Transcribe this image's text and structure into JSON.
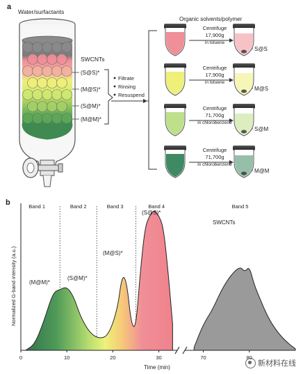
{
  "panel_a": {
    "label": "a",
    "column_label": "Water/surfactants",
    "swcnt_label": "SWCNTs",
    "fractions": [
      "(S@S)*",
      "(M@S)*",
      "(S@M)*",
      "(M@M)*"
    ],
    "steps": [
      "Filtrate",
      "Rinsing",
      "Resuspend"
    ],
    "organic_label": "Organic solvents/polymer",
    "rows": [
      {
        "step": "Centrifuge",
        "speed": "17,900g",
        "solvent": "in toluene",
        "product": "S@S",
        "color": "#f08f98"
      },
      {
        "step": "Centrifuge",
        "speed": "17,900g",
        "solvent": "in toluene",
        "product": "M@S",
        "color": "#eef07a"
      },
      {
        "step": "Centrifuge",
        "speed": "71,700g",
        "solvent": "in chlorobenzene",
        "product": "S@M",
        "color": "#bfe08a"
      },
      {
        "step": "Centrifuge",
        "speed": "71,700g",
        "solvent": "in chlorobenzene",
        "product": "M@M",
        "color": "#3f8a64"
      }
    ]
  },
  "panel_b": {
    "label": "b",
    "ylabel": "Normalized G-band intensity (a.u.)",
    "xlabel": "Time (min)",
    "bands": [
      "Band 1",
      "Band 2",
      "Band 3",
      "Band 4",
      "Band 5"
    ],
    "peak_labels": [
      {
        "text": "(M@M)*",
        "color": "#4b8b7a"
      },
      {
        "text": "(S@M)*",
        "color": "#8dc04a"
      },
      {
        "text": "(M@S)*",
        "color": "#b8a94a"
      },
      {
        "text": "(S@S)*",
        "color": "#e3707a"
      }
    ],
    "swcnt_label": "SWCNTs",
    "ticks": [
      "0",
      "10",
      "20",
      "30",
      "70",
      "80"
    ]
  },
  "chart_data": {
    "type": "area",
    "xlabel": "Time (min)",
    "ylabel": "Normalized G-band intensity (a.u.)",
    "xlim": [
      0,
      90
    ],
    "x_break": [
      34,
      66
    ],
    "x": [
      1,
      3,
      5,
      7,
      8.5,
      10,
      11.5,
      13,
      15,
      17,
      19,
      21,
      22,
      23,
      24,
      25,
      26,
      27,
      28,
      29,
      30,
      31,
      32,
      33,
      68,
      70,
      72,
      74,
      76,
      78,
      79,
      80,
      81,
      82,
      84,
      86,
      88,
      90
    ],
    "y": [
      0.0,
      0.04,
      0.2,
      0.4,
      0.42,
      0.44,
      0.37,
      0.23,
      0.12,
      0.08,
      0.1,
      0.28,
      0.52,
      0.48,
      0.18,
      0.15,
      0.55,
      0.85,
      0.93,
      0.97,
      0.93,
      0.85,
      0.55,
      0.18,
      0.02,
      0.18,
      0.28,
      0.42,
      0.52,
      0.58,
      0.54,
      0.58,
      0.46,
      0.38,
      0.23,
      0.13,
      0.06,
      0.01
    ],
    "band_boundaries": [
      8.5,
      16.5,
      25
    ]
  },
  "watermark": "新材料在线"
}
